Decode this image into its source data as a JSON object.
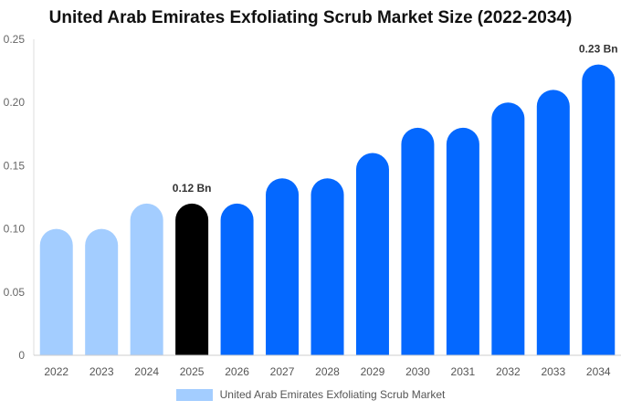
{
  "chart_data": {
    "type": "bar",
    "title": "United Arab Emirates Exfoliating Scrub Market Size (2022-2034)",
    "categories": [
      "2022",
      "2023",
      "2024",
      "2025",
      "2026",
      "2027",
      "2028",
      "2029",
      "2030",
      "2031",
      "2032",
      "2033",
      "2034"
    ],
    "series": [
      {
        "name": "United Arab Emirates Exfoliating Scrub Market",
        "values": [
          0.1,
          0.1,
          0.12,
          0.12,
          0.12,
          0.14,
          0.14,
          0.16,
          0.18,
          0.18,
          0.2,
          0.21,
          0.23
        ]
      }
    ],
    "bar_colors": [
      "#a3cdff",
      "#a3cdff",
      "#a3cdff",
      "#000000",
      "#0468ff",
      "#0468ff",
      "#0468ff",
      "#0468ff",
      "#0468ff",
      "#0468ff",
      "#0468ff",
      "#0468ff",
      "#0468ff"
    ],
    "annotations": [
      {
        "category": "2025",
        "text": "0.12 Bn"
      },
      {
        "category": "2034",
        "text": "0.23 Bn"
      }
    ],
    "y_ticks": [
      "0",
      "0.05",
      "0.10",
      "0.15",
      "0.20",
      "0.25"
    ],
    "y_tick_values": [
      0,
      0.05,
      0.1,
      0.15,
      0.2,
      0.25
    ],
    "ylim": [
      0,
      0.25
    ],
    "grid": false,
    "legend_placement": "bottom-center",
    "legend_color": "#a3cdff",
    "xlabel": "",
    "ylabel": ""
  }
}
